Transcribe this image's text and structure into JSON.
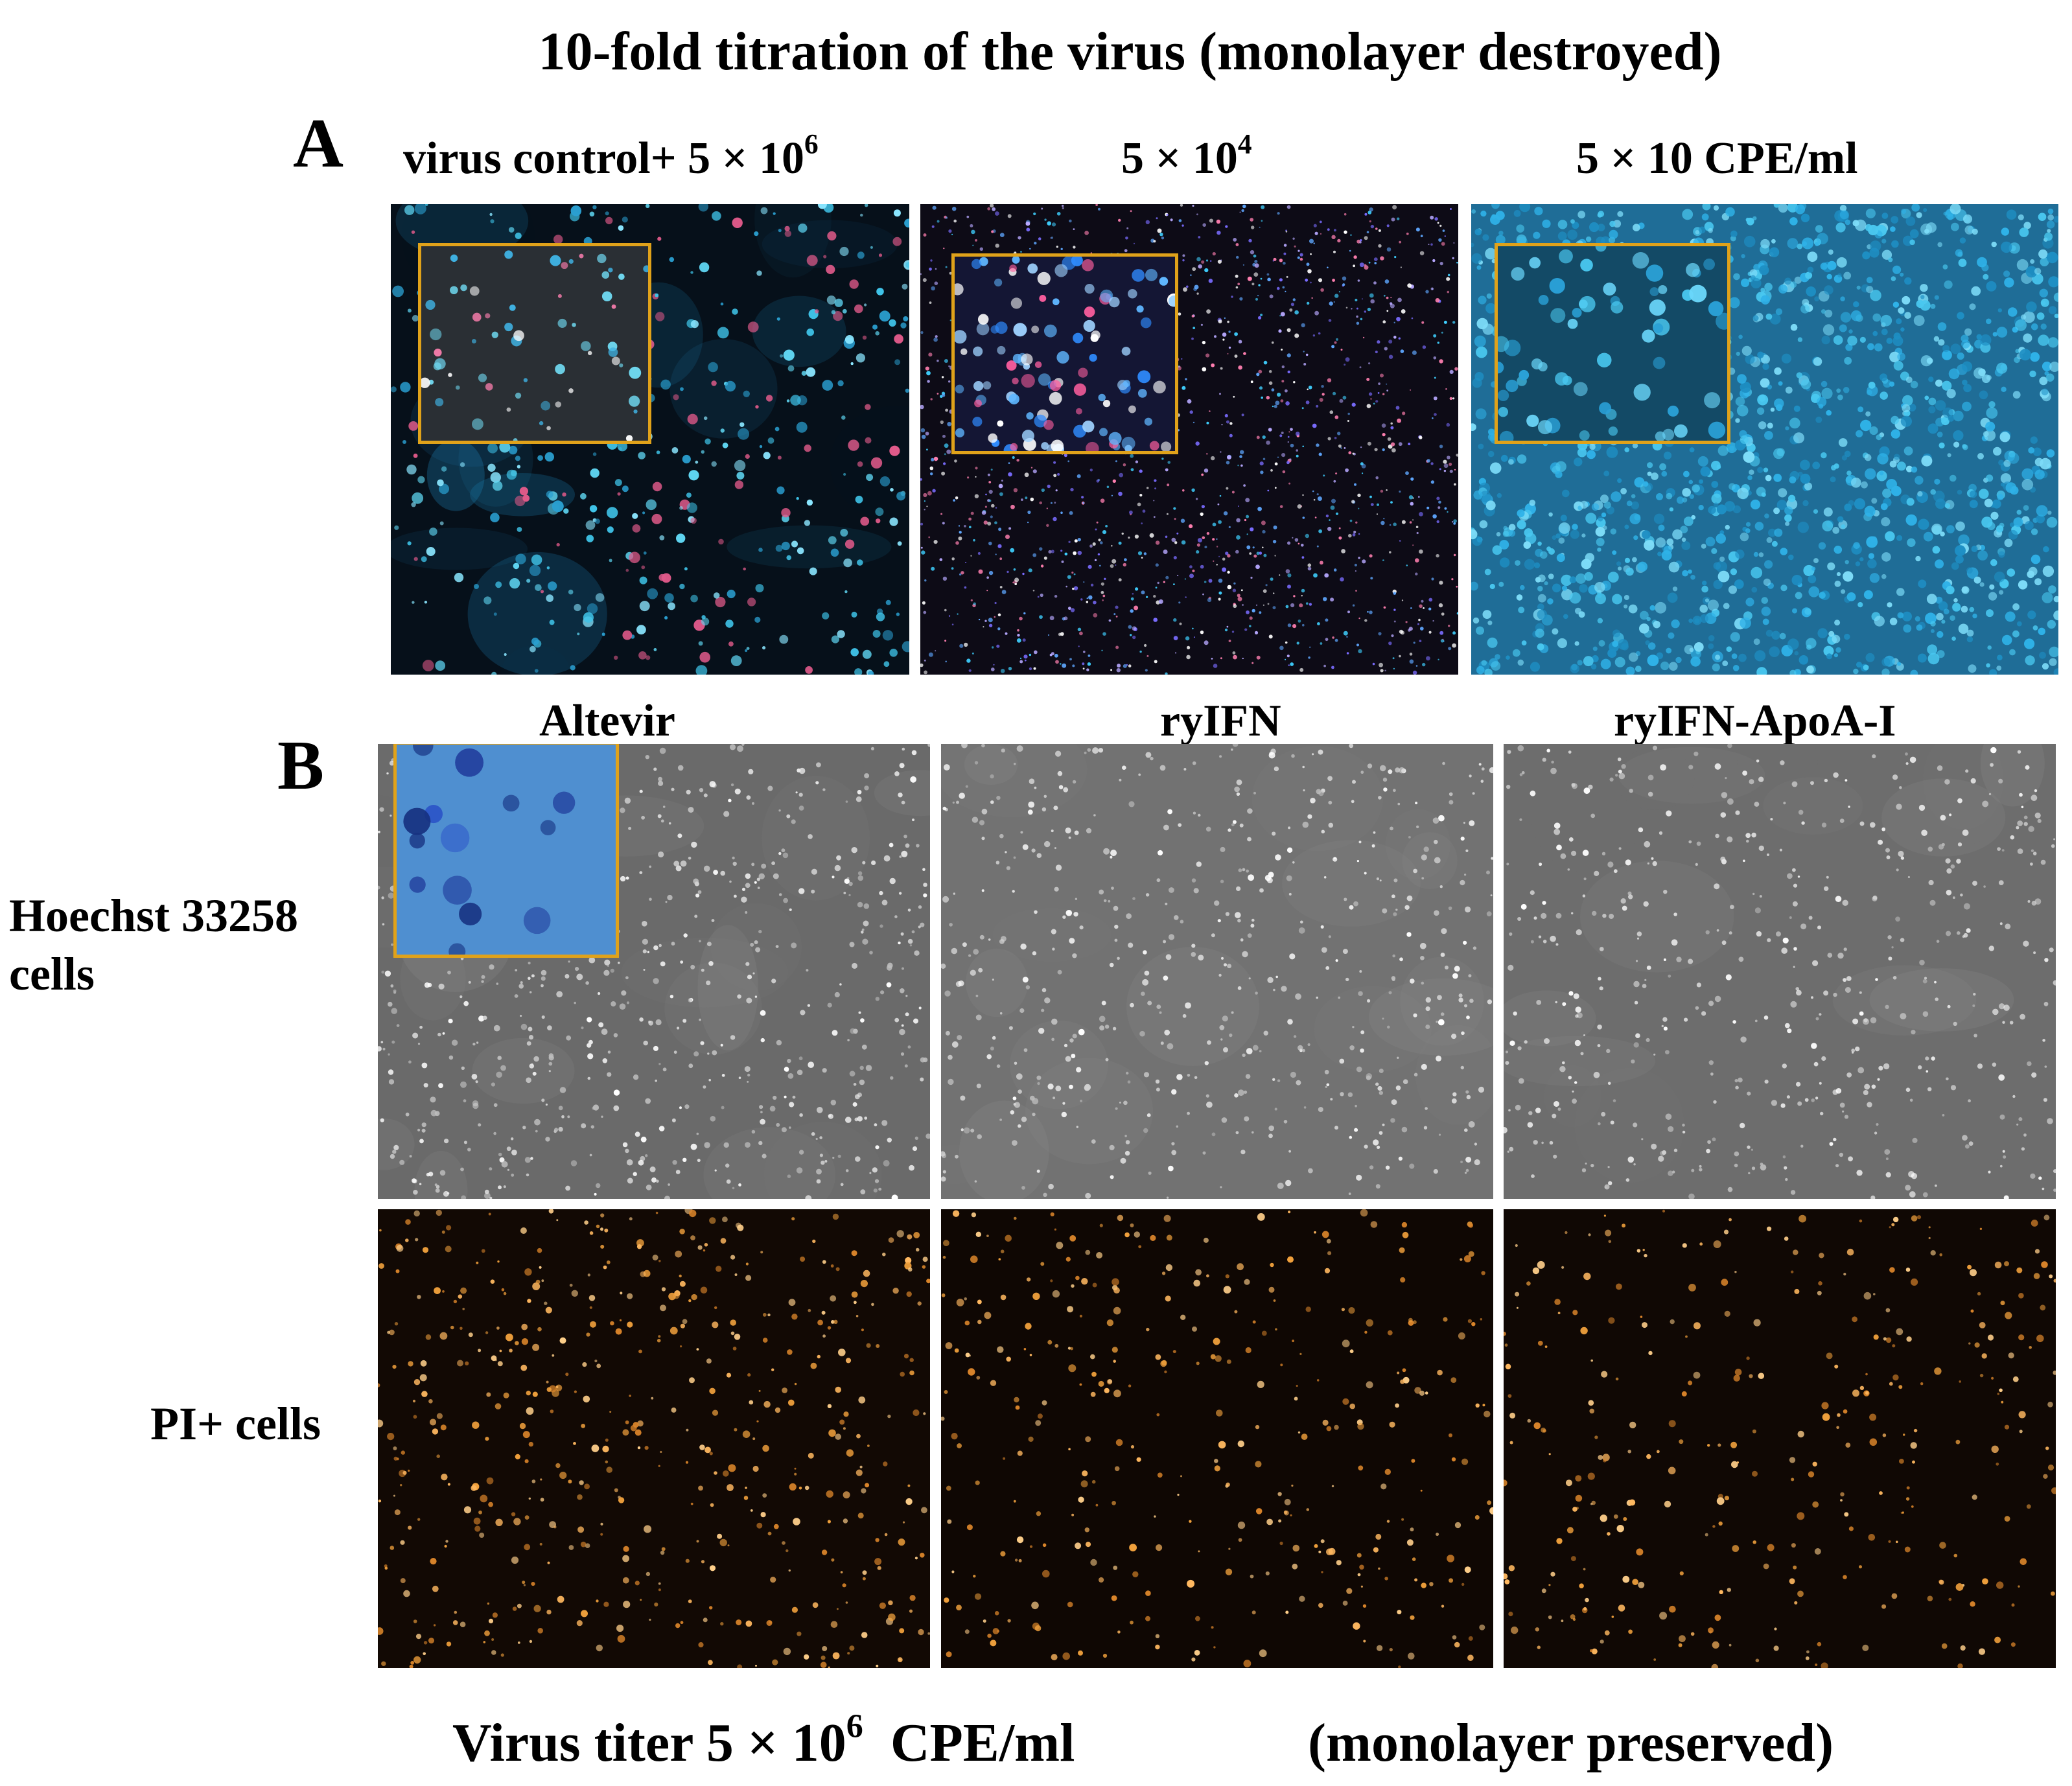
{
  "title": "10-fold titration of the virus  (monolayer destroyed)",
  "panel_a": {
    "letter": "A",
    "headers": {
      "col1_prefix": "virus control+  5 × 10",
      "col1_sup": "6",
      "col2_prefix": "5 × 10",
      "col2_sup": "4",
      "col3": "5 × 10 CPE/ml"
    }
  },
  "panel_b": {
    "letter": "B",
    "columns": [
      "Altevir",
      "ryIFN",
      "ryIFN-ApoA-I"
    ],
    "rows": {
      "hoechst_line1": "Hoechst 33258",
      "hoechst_line2": "cells",
      "pi": "PI+ cells"
    }
  },
  "footer": {
    "titer_prefix": "Virus titer 5 × 10",
    "titer_sup": "6",
    "titer_suffix": "  CPE/ml",
    "note": "(monolayer preserved)"
  },
  "colors": {
    "inset_border": "#e0a21a",
    "hoechst_cyan": "#3fc3e8",
    "pi_orange": "#f0a03c",
    "gray_field": "#6f6f6f"
  }
}
